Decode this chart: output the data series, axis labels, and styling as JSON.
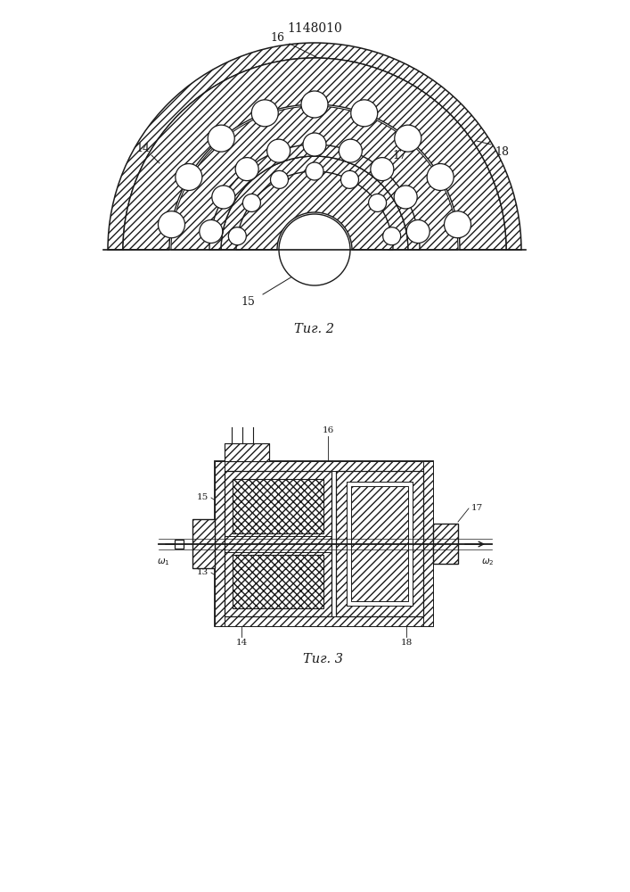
{
  "title": "1148010",
  "fig2_caption": "Τиг. 2",
  "fig3_caption": "Τиг. 3",
  "bg_color": "#ffffff",
  "line_color": "#1a1a1a"
}
